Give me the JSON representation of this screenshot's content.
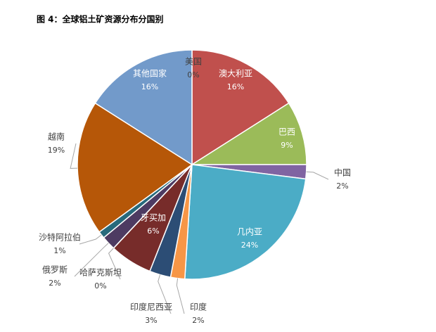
{
  "chart_data": {
    "type": "pie",
    "title": "图 4：全球铝土矿资源分布分国别",
    "categories": [
      "美国",
      "澳大利亚",
      "巴西",
      "中国",
      "几内亚",
      "印度",
      "印度尼西亚",
      "牙买加",
      "哈萨克斯坦",
      "俄罗斯",
      "沙特阿拉伯",
      "越南",
      "其他国家"
    ],
    "values": [
      0,
      16,
      9,
      2,
      24,
      2,
      3,
      6,
      0,
      2,
      1,
      19,
      16
    ],
    "value_labels": [
      "0%",
      "16%",
      "9%",
      "2%",
      "24%",
      "2%",
      "3%",
      "6%",
      "0%",
      "2%",
      "1%",
      "19%",
      "16%"
    ],
    "colors": [
      "#4f81bd",
      "#c0504d",
      "#9bbb59",
      "#8064a2",
      "#4bacc6",
      "#f79646",
      "#2c4d75",
      "#772c2a",
      "#5f7530",
      "#4d3b62",
      "#276a7c",
      "#b65708",
      "#729aca"
    ]
  }
}
